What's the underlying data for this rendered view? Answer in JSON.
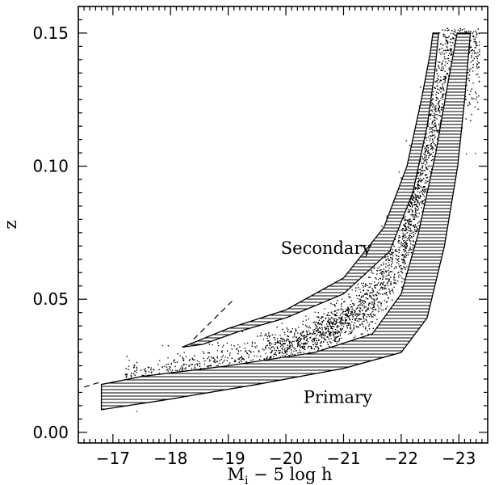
{
  "chart_data": {
    "type": "scatter",
    "title": "",
    "xlabel": "M",
    "xlabel_sub": "i",
    "xlabel_rest": " − 5 log h",
    "ylabel": "z",
    "xlim": [
      -16.4,
      -23.5
    ],
    "ylim": [
      -0.004,
      0.16
    ],
    "x_ticks": [
      -17,
      -18,
      -19,
      -20,
      -21,
      -22,
      -23
    ],
    "x_tick_labels": [
      "−17",
      "−18",
      "−19",
      "−20",
      "−21",
      "−22",
      "−23"
    ],
    "y_ticks": [
      0.0,
      0.05,
      0.1,
      0.15
    ],
    "y_tick_labels": [
      "0.00",
      "0.05",
      "0.10",
      "0.15"
    ],
    "bands": [
      {
        "name": "Secondary",
        "lower": [
          [
            -18.55,
            0.033
          ],
          [
            -19.2,
            0.038
          ],
          [
            -20.0,
            0.043
          ],
          [
            -21.0,
            0.052
          ],
          [
            -21.8,
            0.068
          ],
          [
            -22.2,
            0.09
          ],
          [
            -22.45,
            0.115
          ],
          [
            -22.58,
            0.135
          ],
          [
            -22.65,
            0.15
          ]
        ],
        "upper": [
          [
            -18.2,
            0.032
          ],
          [
            -19.0,
            0.039
          ],
          [
            -20.0,
            0.046
          ],
          [
            -21.0,
            0.058
          ],
          [
            -21.7,
            0.077
          ],
          [
            -22.1,
            0.1
          ],
          [
            -22.35,
            0.125
          ],
          [
            -22.5,
            0.142
          ],
          [
            -22.55,
            0.15
          ]
        ]
      },
      {
        "name": "Primary",
        "lower": [
          [
            -16.8,
            0.0085
          ],
          [
            -18.0,
            0.0125
          ],
          [
            -19.5,
            0.018
          ],
          [
            -21.0,
            0.024
          ],
          [
            -22.0,
            0.03
          ],
          [
            -22.45,
            0.043
          ],
          [
            -22.75,
            0.07
          ],
          [
            -22.98,
            0.1
          ],
          [
            -23.1,
            0.125
          ],
          [
            -23.2,
            0.15
          ]
        ],
        "upper": [
          [
            -16.8,
            0.018
          ],
          [
            -17.5,
            0.021
          ],
          [
            -19.0,
            0.025
          ],
          [
            -20.5,
            0.03
          ],
          [
            -21.5,
            0.037
          ],
          [
            -22.0,
            0.052
          ],
          [
            -22.3,
            0.075
          ],
          [
            -22.6,
            0.105
          ],
          [
            -22.8,
            0.13
          ],
          [
            -22.97,
            0.15
          ]
        ]
      }
    ],
    "reference_line": {
      "style": "dashed",
      "segments": [
        [
          [
            -16.5,
            0.017
          ],
          [
            -16.8,
            0.019
          ]
        ],
        [
          [
            -18.4,
            0.035
          ],
          [
            -19.1,
            0.05
          ]
        ]
      ]
    },
    "annotations": [
      {
        "text": "Secondary",
        "x": -20.7,
        "y": 0.067
      },
      {
        "text": "Primary",
        "x": -20.9,
        "y": 0.011
      }
    ],
    "scatter_summary": {
      "n_points": 5200,
      "x_range": [
        -17.2,
        -23.35
      ],
      "ridge": [
        [
          -17.5,
          0.02
        ],
        [
          -18.5,
          0.025
        ],
        [
          -19.5,
          0.029
        ],
        [
          -20.5,
          0.036
        ],
        [
          -21.5,
          0.05
        ],
        [
          -22.0,
          0.07
        ],
        [
          -22.4,
          0.1
        ],
        [
          -22.7,
          0.13
        ],
        [
          -22.85,
          0.15
        ]
      ],
      "spread": 0.006
    }
  }
}
